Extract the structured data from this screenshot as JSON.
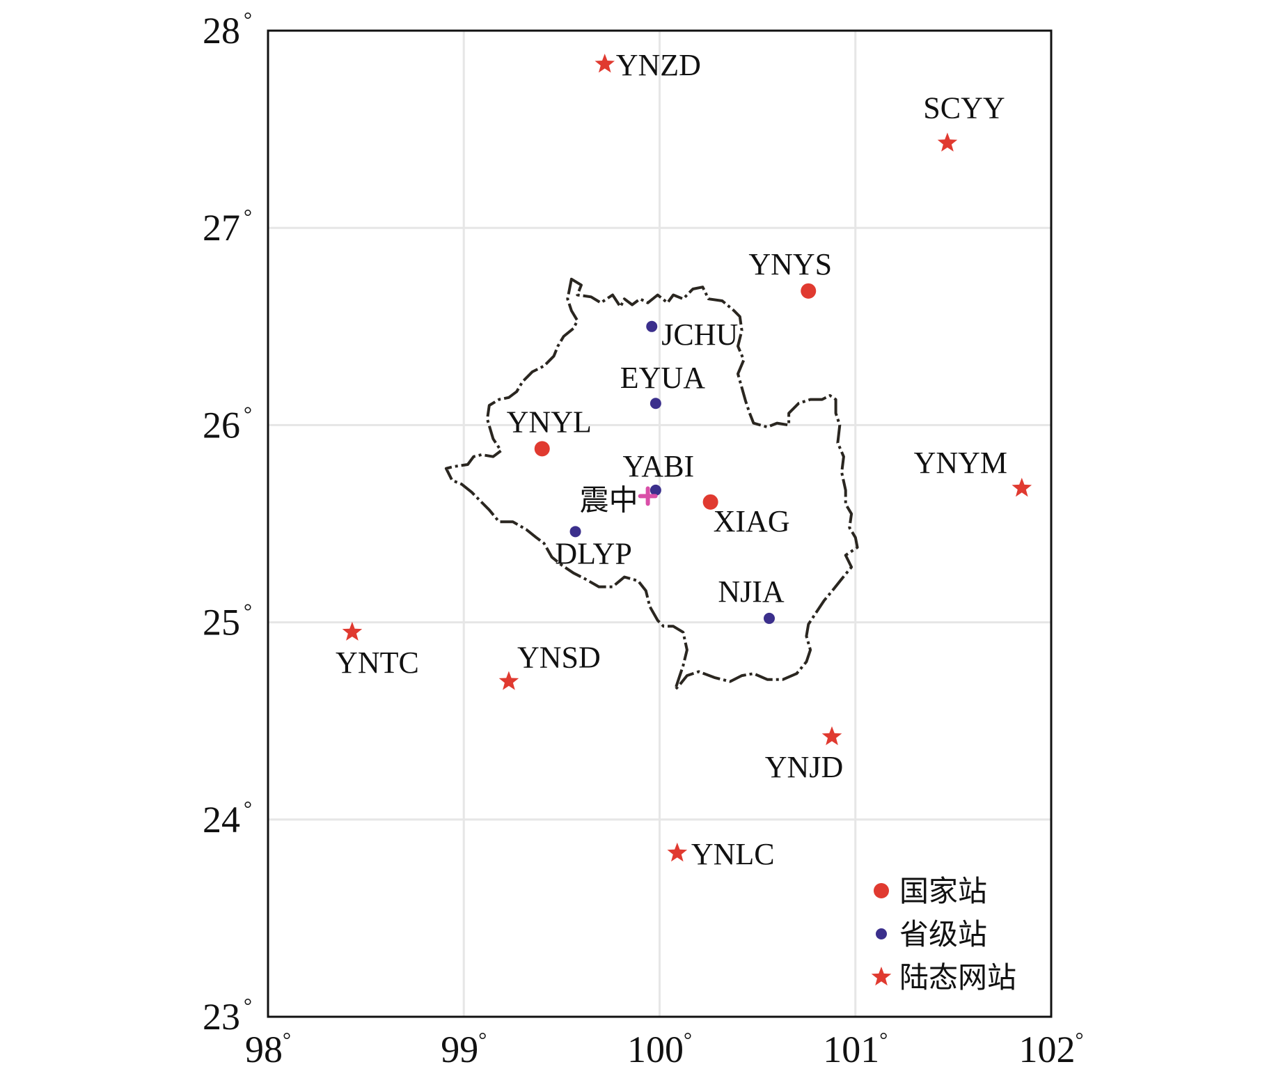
{
  "map": {
    "x_ticks": [
      "98°",
      "99°",
      "100°",
      "101°",
      "102°"
    ],
    "y_ticks": [
      "28°",
      "27°",
      "26°",
      "25°",
      "24°",
      "23°"
    ],
    "x_range": [
      98,
      102
    ],
    "y_range": [
      23,
      28
    ],
    "grid": true
  },
  "colors": {
    "national": "#e03a30",
    "provincial": "#3b2f8c",
    "crustal": "#e03a30",
    "epicenter": "#d94fa8",
    "boundary": "#2a2620",
    "grid": "#e6e6e6",
    "frame": "#111111"
  },
  "stations": [
    {
      "name": "YNZD",
      "type": "crustal",
      "lon": 99.72,
      "lat": 27.83
    },
    {
      "name": "SCYY",
      "type": "crustal",
      "lon": 101.47,
      "lat": 27.43
    },
    {
      "name": "YNYS",
      "type": "national",
      "lon": 100.76,
      "lat": 26.68
    },
    {
      "name": "JCHU",
      "type": "provincial",
      "lon": 99.96,
      "lat": 26.5
    },
    {
      "name": "EYUA",
      "type": "provincial",
      "lon": 99.98,
      "lat": 26.11
    },
    {
      "name": "YNYL",
      "type": "national",
      "lon": 99.4,
      "lat": 25.88
    },
    {
      "name": "YNYM",
      "type": "crustal",
      "lon": 101.85,
      "lat": 25.68
    },
    {
      "name": "YABI",
      "type": "provincial",
      "lon": 99.98,
      "lat": 25.67
    },
    {
      "name": "XIAG",
      "type": "national",
      "lon": 100.26,
      "lat": 25.61
    },
    {
      "name": "DLYP",
      "type": "provincial",
      "lon": 99.57,
      "lat": 25.46
    },
    {
      "name": "NJIA",
      "type": "provincial",
      "lon": 100.56,
      "lat": 25.02
    },
    {
      "name": "YNTC",
      "type": "crustal",
      "lon": 98.43,
      "lat": 24.95
    },
    {
      "name": "YNSD",
      "type": "crustal",
      "lon": 99.23,
      "lat": 24.7
    },
    {
      "name": "YNJD",
      "type": "crustal",
      "lon": 100.88,
      "lat": 24.42
    },
    {
      "name": "YNLC",
      "type": "crustal",
      "lon": 100.09,
      "lat": 23.83
    }
  ],
  "epicenter": {
    "label": "震中",
    "lon": 99.94,
    "lat": 25.64
  },
  "legend": [
    {
      "label": "国家站",
      "type": "national"
    },
    {
      "label": "省级站",
      "type": "provincial"
    },
    {
      "label": "陆态网站",
      "type": "crustal"
    }
  ],
  "boundary": [
    [
      99.55,
      26.74
    ],
    [
      99.6,
      26.71
    ],
    [
      99.58,
      26.66
    ],
    [
      99.65,
      26.65
    ],
    [
      99.7,
      26.62
    ],
    [
      99.76,
      26.66
    ],
    [
      99.8,
      26.6
    ],
    [
      99.82,
      26.64
    ],
    [
      99.86,
      26.61
    ],
    [
      99.9,
      26.64
    ],
    [
      99.94,
      26.62
    ],
    [
      99.99,
      26.66
    ],
    [
      100.04,
      26.62
    ],
    [
      100.07,
      26.66
    ],
    [
      100.12,
      26.64
    ],
    [
      100.17,
      26.69
    ],
    [
      100.22,
      26.7
    ],
    [
      100.25,
      26.64
    ],
    [
      100.32,
      26.63
    ],
    [
      100.38,
      26.58
    ],
    [
      100.41,
      26.55
    ],
    [
      100.42,
      26.48
    ],
    [
      100.4,
      26.4
    ],
    [
      100.43,
      26.33
    ],
    [
      100.4,
      26.26
    ],
    [
      100.42,
      26.19
    ],
    [
      100.44,
      26.12
    ],
    [
      100.46,
      26.06
    ],
    [
      100.48,
      26.01
    ],
    [
      100.55,
      25.99
    ],
    [
      100.6,
      26.01
    ],
    [
      100.66,
      26.0
    ],
    [
      100.66,
      26.06
    ],
    [
      100.71,
      26.11
    ],
    [
      100.77,
      26.13
    ],
    [
      100.83,
      26.13
    ],
    [
      100.87,
      26.15
    ],
    [
      100.9,
      26.13
    ],
    [
      100.9,
      26.06
    ],
    [
      100.92,
      26.0
    ],
    [
      100.91,
      25.91
    ],
    [
      100.94,
      25.84
    ],
    [
      100.93,
      25.76
    ],
    [
      100.95,
      25.67
    ],
    [
      100.95,
      25.6
    ],
    [
      100.98,
      25.55
    ],
    [
      100.97,
      25.48
    ],
    [
      101.0,
      25.43
    ],
    [
      101.01,
      25.38
    ],
    [
      100.95,
      25.34
    ],
    [
      100.98,
      25.28
    ],
    [
      100.93,
      25.22
    ],
    [
      100.89,
      25.17
    ],
    [
      100.84,
      25.11
    ],
    [
      100.8,
      25.05
    ],
    [
      100.76,
      24.99
    ],
    [
      100.75,
      24.93
    ],
    [
      100.77,
      24.86
    ],
    [
      100.75,
      24.8
    ],
    [
      100.7,
      24.74
    ],
    [
      100.63,
      24.71
    ],
    [
      100.55,
      24.71
    ],
    [
      100.48,
      24.74
    ],
    [
      100.42,
      24.73
    ],
    [
      100.36,
      24.7
    ],
    [
      100.28,
      24.72
    ],
    [
      100.2,
      24.75
    ],
    [
      100.14,
      24.73
    ],
    [
      100.1,
      24.68
    ],
    [
      100.08,
      24.66
    ],
    [
      100.1,
      24.72
    ],
    [
      100.12,
      24.78
    ],
    [
      100.14,
      24.86
    ],
    [
      100.12,
      24.95
    ],
    [
      100.07,
      24.98
    ],
    [
      100.02,
      24.98
    ],
    [
      99.99,
      25.01
    ],
    [
      99.95,
      25.08
    ],
    [
      99.93,
      25.16
    ],
    [
      99.89,
      25.21
    ],
    [
      99.82,
      25.23
    ],
    [
      99.76,
      25.18
    ],
    [
      99.69,
      25.18
    ],
    [
      99.62,
      25.22
    ],
    [
      99.56,
      25.25
    ],
    [
      99.5,
      25.29
    ],
    [
      99.45,
      25.33
    ],
    [
      99.41,
      25.4
    ],
    [
      99.37,
      25.43
    ],
    [
      99.32,
      25.47
    ],
    [
      99.25,
      25.51
    ],
    [
      99.18,
      25.51
    ],
    [
      99.13,
      25.57
    ],
    [
      99.08,
      25.62
    ],
    [
      99.04,
      25.66
    ],
    [
      98.99,
      25.7
    ],
    [
      98.94,
      25.72
    ],
    [
      98.91,
      25.78
    ],
    [
      98.95,
      25.79
    ],
    [
      99.02,
      25.8
    ],
    [
      99.05,
      25.84
    ],
    [
      99.09,
      25.85
    ],
    [
      99.15,
      25.84
    ],
    [
      99.19,
      25.87
    ],
    [
      99.15,
      25.93
    ],
    [
      99.12,
      26.03
    ],
    [
      99.13,
      26.1
    ],
    [
      99.18,
      26.13
    ],
    [
      99.23,
      26.14
    ],
    [
      99.27,
      26.17
    ],
    [
      99.3,
      26.22
    ],
    [
      99.35,
      26.27
    ],
    [
      99.41,
      26.3
    ],
    [
      99.46,
      26.35
    ],
    [
      99.48,
      26.4
    ],
    [
      99.51,
      26.45
    ],
    [
      99.56,
      26.49
    ],
    [
      99.58,
      26.53
    ],
    [
      99.55,
      26.58
    ],
    [
      99.53,
      26.64
    ],
    [
      99.55,
      26.74
    ]
  ]
}
